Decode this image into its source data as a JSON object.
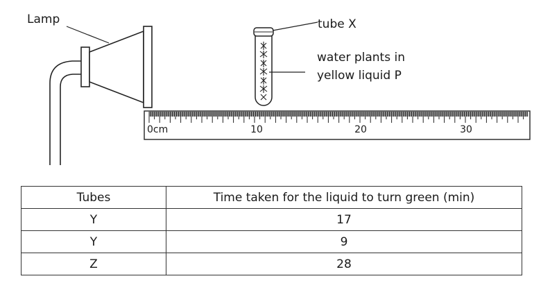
{
  "labels": {
    "lamp": "Lamp",
    "tube": "tube X",
    "plants_line1": "water plants in",
    "plants_line2": "yellow liquid P"
  },
  "ruler": {
    "tick_labels": [
      "0cm",
      "10",
      "20",
      "30"
    ]
  },
  "table": {
    "headers": [
      "Tubes",
      "Time taken for the liquid to turn green (min)"
    ],
    "rows": [
      {
        "tube": "Y",
        "time": "17"
      },
      {
        "tube": "Y",
        "time": "9"
      },
      {
        "tube": "Z",
        "time": "28"
      }
    ]
  }
}
